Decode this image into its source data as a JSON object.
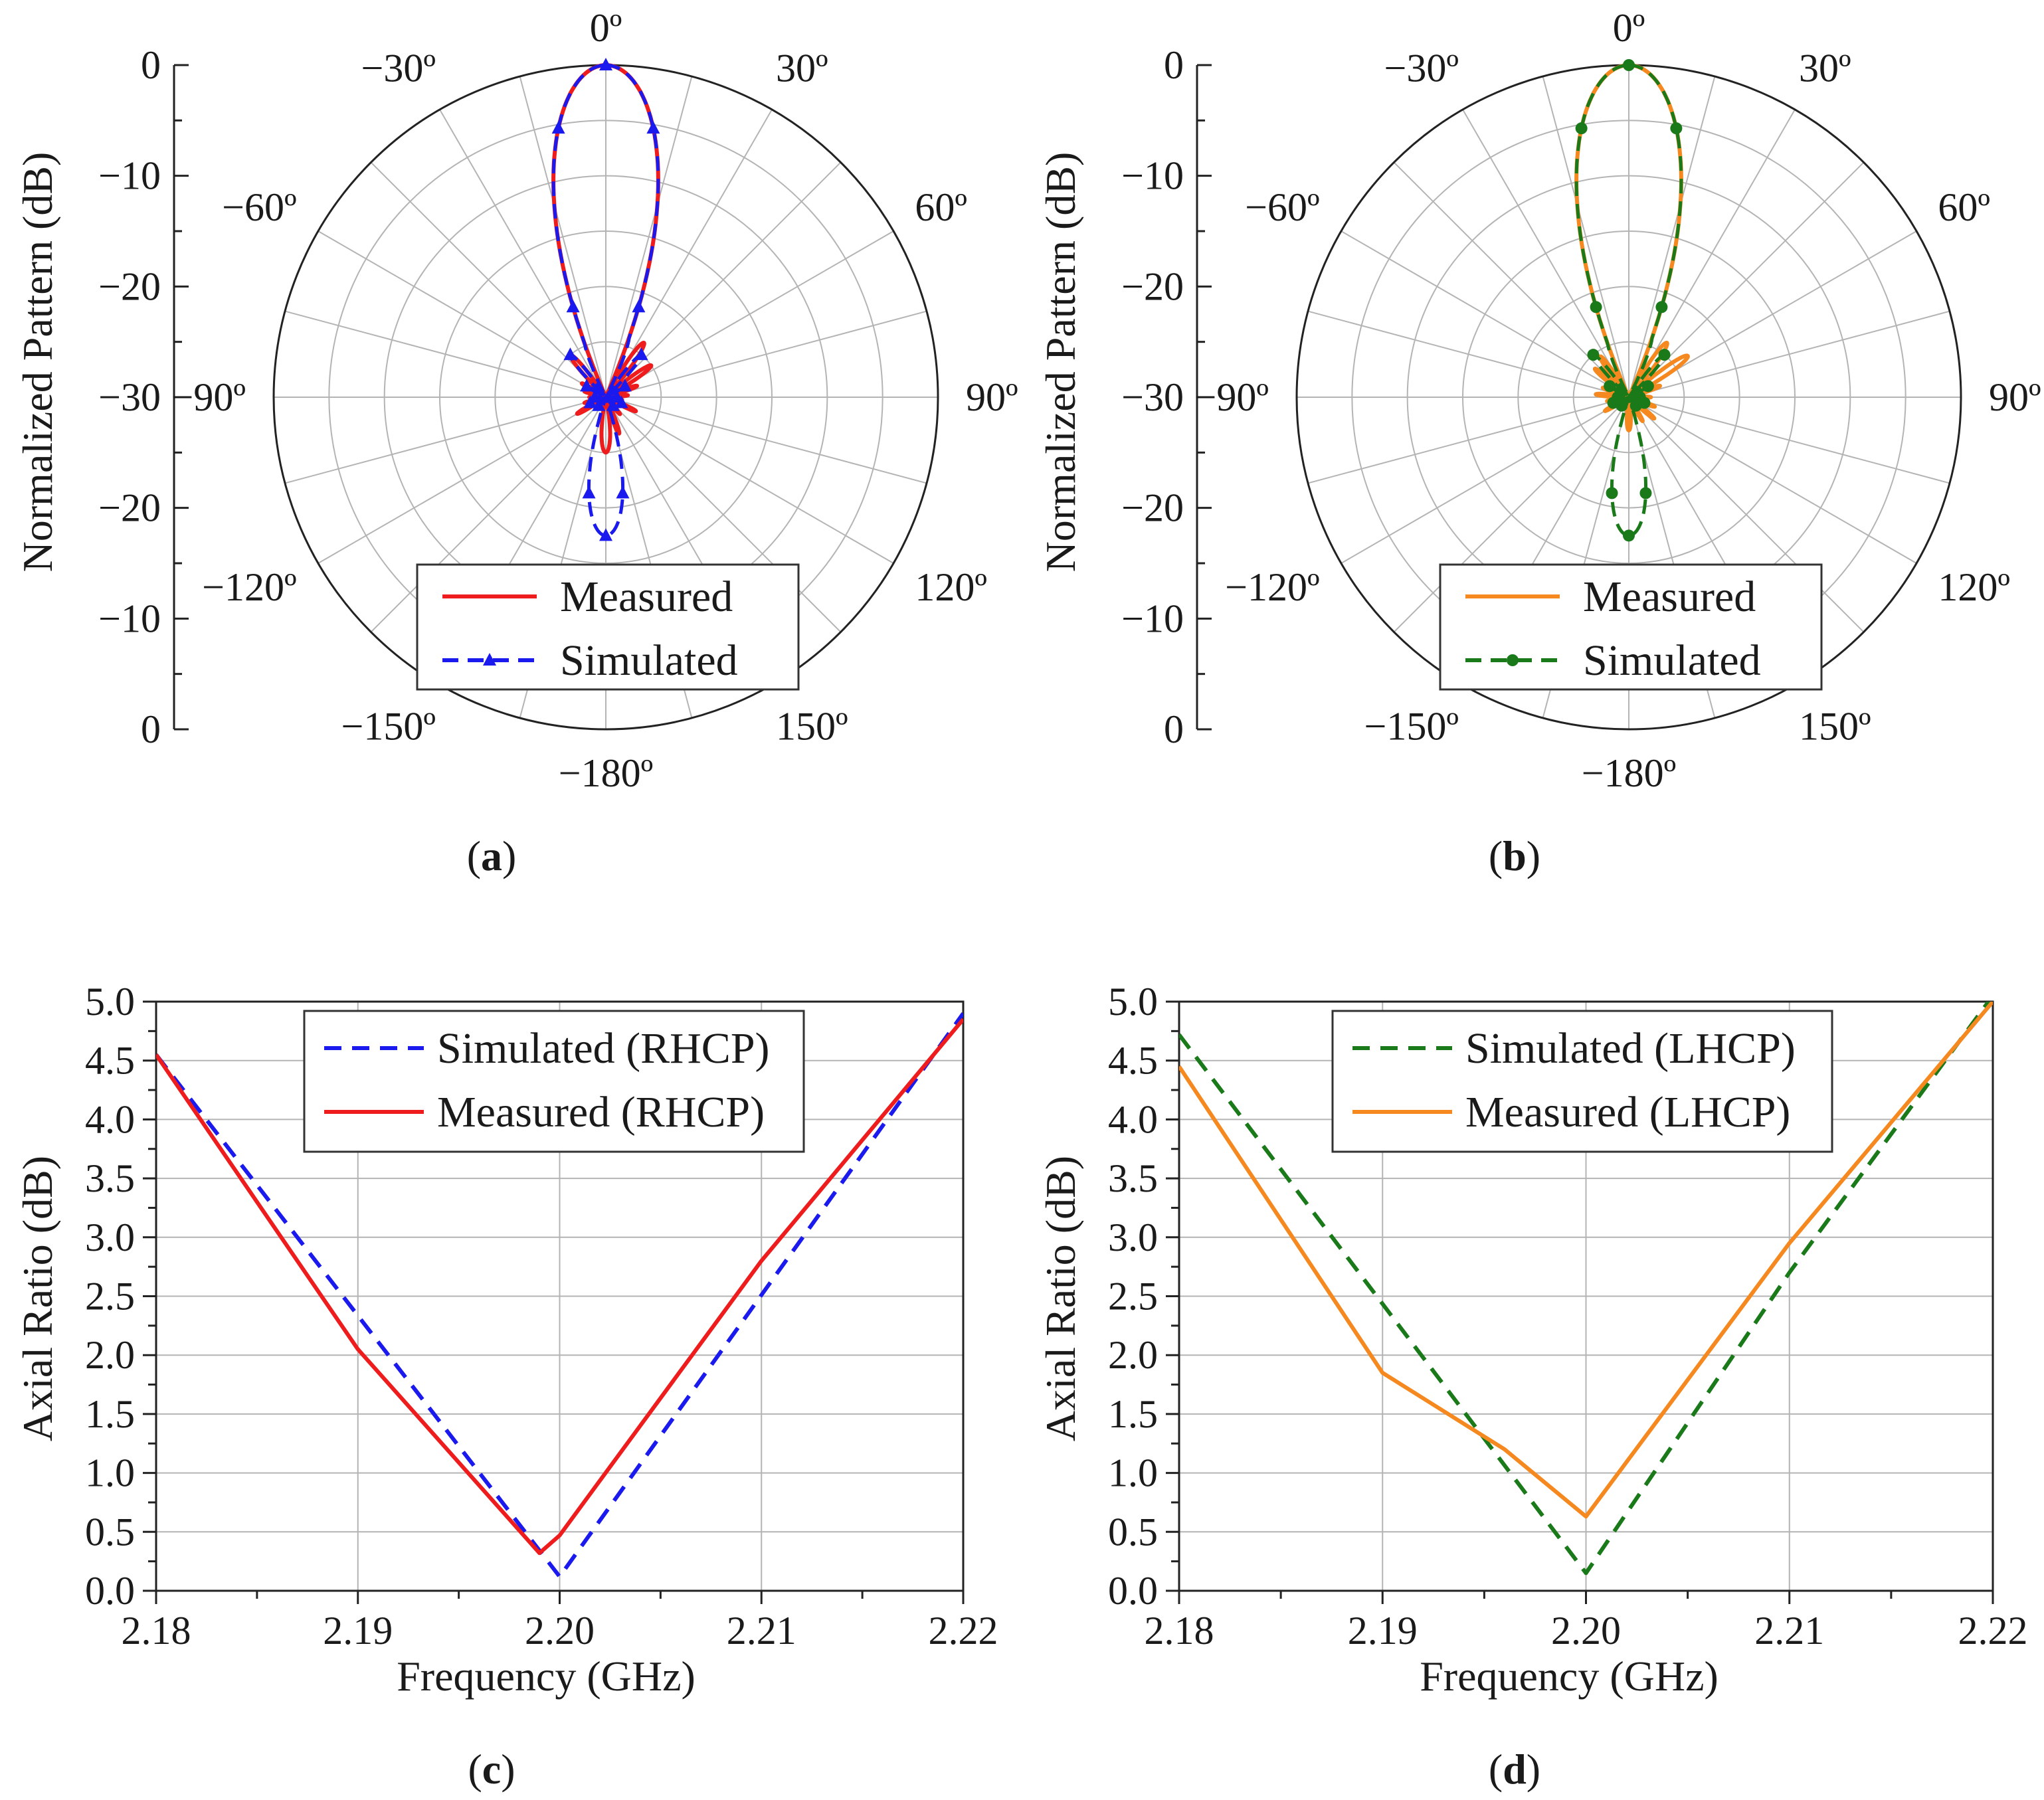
{
  "colors": {
    "red": "#ee1c1c",
    "blue": "#1a1aee",
    "orange": "#f5891f",
    "green": "#1a7a1a",
    "grid": "#b4b4b4",
    "axis": "#222222"
  },
  "chart_data": [
    {
      "id": "a",
      "type": "polar",
      "panel_label": "a",
      "ylabel": "Normalized Pattern (dB)",
      "radial_range": [
        -30,
        0
      ],
      "radial_tick_labels": [
        "0",
        "-10",
        "-20",
        "-30",
        "-20",
        "-10",
        "0"
      ],
      "angle_labels": [
        "0º",
        "30º",
        "60º",
        "90º",
        "120º",
        "150º",
        "−180º",
        "−150º",
        "−120º",
        "−90º",
        "−60º",
        "−30º"
      ],
      "series": [
        {
          "name": "Measured",
          "style": "solid",
          "color_key": "red",
          "marker": "none",
          "main_lobe": {
            "halfwidth_deg": 15,
            "level_db": 0
          },
          "back_lobe_deg": 180,
          "back_lobe_level_db": -25,
          "sidelobes": [
            [
              -120,
              -27
            ],
            [
              -105,
              -28
            ],
            [
              -90,
              -28.5
            ],
            [
              -75,
              -28
            ],
            [
              -60,
              -27.5
            ],
            [
              -40,
              -25
            ],
            [
              35,
              -24
            ],
            [
              55,
              -25
            ],
            [
              70,
              -27
            ],
            [
              85,
              -28
            ],
            [
              100,
              -28.5
            ],
            [
              115,
              -27
            ],
            [
              140,
              -28
            ],
            [
              160,
              -26.5
            ]
          ]
        },
        {
          "name": "Simulated",
          "style": "dashed",
          "color_key": "blue",
          "marker": "triangle",
          "main_lobe": {
            "halfwidth_deg": 15,
            "level_db": 0
          },
          "back_lobe_deg": 180,
          "back_lobe_level_db": -17.5,
          "sidelobes": [
            [
              -140,
              -29
            ],
            [
              -110,
              -28.5
            ],
            [
              -90,
              -29
            ],
            [
              -60,
              -28
            ],
            [
              -40,
              -25
            ],
            [
              -20,
              -24.5
            ],
            [
              20,
              -24
            ],
            [
              40,
              -25
            ],
            [
              60,
              -28
            ],
            [
              90,
              -29
            ],
            [
              110,
              -28.5
            ],
            [
              140,
              -29
            ]
          ]
        }
      ]
    },
    {
      "id": "b",
      "type": "polar",
      "panel_label": "b",
      "ylabel": "Normalized Pattern (dB)",
      "radial_range": [
        -30,
        0
      ],
      "radial_tick_labels": [
        "0",
        "-10",
        "-20",
        "-30",
        "-20",
        "-10",
        "0"
      ],
      "angle_labels": [
        "0º",
        "30º",
        "60º",
        "90º",
        "120º",
        "150º",
        "−180º",
        "−150º",
        "−120º",
        "−90º",
        "−60º",
        "−30º"
      ],
      "series": [
        {
          "name": "Measured",
          "style": "solid",
          "color_key": "orange",
          "marker": "none",
          "main_lobe": {
            "halfwidth_deg": 15,
            "level_db": 0
          },
          "back_lobe_deg": 180,
          "back_lobe_level_db": -27,
          "sidelobes": [
            [
              -120,
              -27.5
            ],
            [
              -100,
              -28
            ],
            [
              -85,
              -27
            ],
            [
              -70,
              -27.5
            ],
            [
              -50,
              -26
            ],
            [
              -35,
              -25.5
            ],
            [
              35,
              -24
            ],
            [
              55,
              -23.5
            ],
            [
              70,
              -27
            ],
            [
              90,
              -28
            ],
            [
              110,
              -27.5
            ],
            [
              130,
              -27
            ],
            [
              150,
              -27.5
            ]
          ]
        },
        {
          "name": "Simulated",
          "style": "dashed",
          "color_key": "green",
          "marker": "circle",
          "main_lobe": {
            "halfwidth_deg": 15,
            "level_db": 0
          },
          "back_lobe_deg": 180,
          "back_lobe_level_db": -17.5,
          "sidelobes": [
            [
              -140,
              -29
            ],
            [
              -110,
              -28.5
            ],
            [
              -90,
              -29
            ],
            [
              -60,
              -28
            ],
            [
              -40,
              -25
            ],
            [
              -20,
              -24.5
            ],
            [
              20,
              -24
            ],
            [
              40,
              -25
            ],
            [
              60,
              -28
            ],
            [
              90,
              -29
            ],
            [
              110,
              -28.5
            ],
            [
              140,
              -29
            ]
          ]
        }
      ]
    },
    {
      "id": "c",
      "type": "line",
      "panel_label": "c",
      "xlabel": "Frequency (GHz)",
      "ylabel": "Axial Ratio (dB)",
      "xlim": [
        2.18,
        2.22
      ],
      "ylim": [
        0.0,
        5.0
      ],
      "x_ticks": [
        "2.18",
        "2.19",
        "2.20",
        "2.21",
        "2.22"
      ],
      "y_ticks": [
        "0.0",
        "0.5",
        "1.0",
        "1.5",
        "2.0",
        "2.5",
        "3.0",
        "3.5",
        "4.0",
        "4.5",
        "5.0"
      ],
      "grid": true,
      "legend_position": "top-center",
      "series": [
        {
          "name": "Simulated (RHCP)",
          "style": "dashed",
          "color_key": "blue",
          "x": [
            2.18,
            2.2,
            2.22
          ],
          "y": [
            4.55,
            0.12,
            4.9
          ]
        },
        {
          "name": "Measured (RHCP)",
          "style": "solid",
          "color_key": "red",
          "x": [
            2.18,
            2.19,
            2.199,
            2.2,
            2.21,
            2.22
          ],
          "y": [
            4.55,
            2.05,
            0.32,
            0.47,
            2.8,
            4.85
          ]
        }
      ]
    },
    {
      "id": "d",
      "type": "line",
      "panel_label": "d",
      "xlabel": "Frequency (GHz)",
      "ylabel": "Axial Ratio (dB)",
      "xlim": [
        2.18,
        2.22
      ],
      "ylim": [
        0.0,
        5.0
      ],
      "x_ticks": [
        "2.18",
        "2.19",
        "2.20",
        "2.21",
        "2.22"
      ],
      "y_ticks": [
        "0.0",
        "0.5",
        "1.0",
        "1.5",
        "2.0",
        "2.5",
        "3.0",
        "3.5",
        "4.0",
        "4.5",
        "5.0"
      ],
      "grid": true,
      "legend_position": "top-center",
      "series": [
        {
          "name": "Simulated (LHCP)",
          "style": "dashed",
          "color_key": "green",
          "x": [
            2.18,
            2.2,
            2.21,
            2.22
          ],
          "y": [
            4.72,
            0.15,
            2.7,
            5.05
          ]
        },
        {
          "name": "Measured (LHCP)",
          "style": "solid",
          "color_key": "orange",
          "x": [
            2.18,
            2.19,
            2.196,
            2.2,
            2.21,
            2.22
          ],
          "y": [
            4.45,
            1.85,
            1.2,
            0.63,
            2.95,
            5.0
          ]
        }
      ]
    }
  ]
}
